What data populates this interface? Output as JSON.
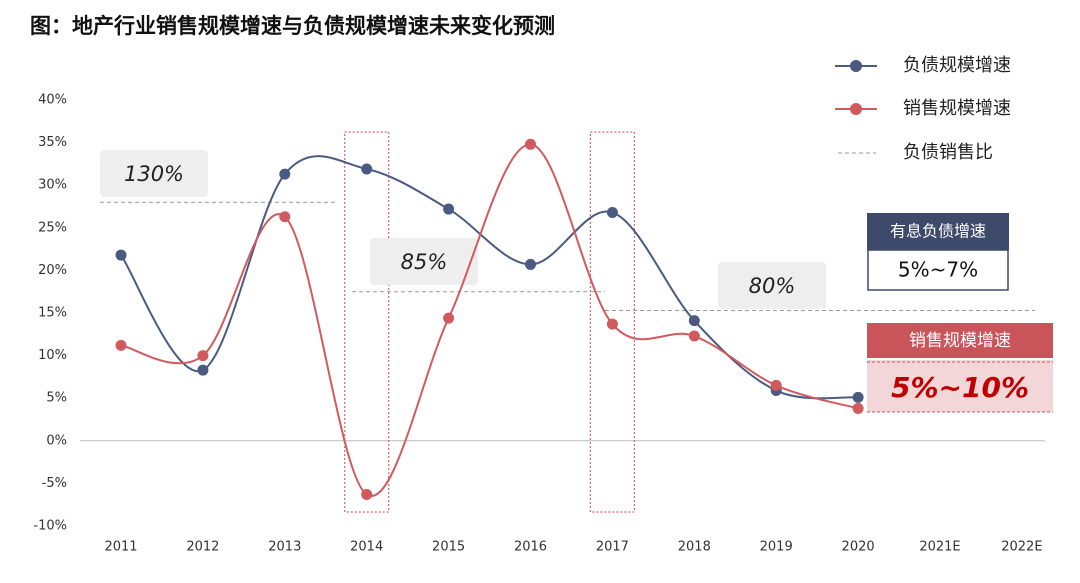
{
  "chart_data": {
    "type": "line",
    "title": "图：地产行业销售规模增速与负债规模增速未来变化预测",
    "categories": [
      "2011",
      "2012",
      "2013",
      "2014",
      "2015",
      "2016",
      "2017",
      "2018",
      "2019",
      "2020",
      "2021E",
      "2022E"
    ],
    "series": [
      {
        "name": "负债规模增速",
        "color": "#4a5a80",
        "values": [
          21.8,
          8.3,
          31.3,
          31.9,
          27.2,
          20.7,
          26.8,
          14.1,
          5.9,
          5.1,
          null,
          null
        ]
      },
      {
        "name": "销售规模增速",
        "color": "#d05a5e",
        "values": [
          11.2,
          10.0,
          26.3,
          -6.3,
          14.4,
          34.8,
          13.7,
          12.3,
          6.5,
          3.8,
          null,
          null
        ]
      }
    ],
    "ratio": {
      "name": "负债销售比",
      "segments": [
        {
          "label": "130%",
          "level": 28
        },
        {
          "label": "85%",
          "level": 17.5
        },
        {
          "label": "80%",
          "level": 15.3
        }
      ]
    },
    "highlight_categories": [
      "2014",
      "2017"
    ],
    "forecasts": [
      {
        "title": "有息负债增速",
        "text": "5%~7%"
      },
      {
        "title": "销售规模增速",
        "text": "5%~10%"
      }
    ],
    "ylim": [
      -10,
      40
    ],
    "yticks": [
      {
        "value": -10,
        "label": "-10%"
      },
      {
        "value": -5,
        "label": "-5%"
      },
      {
        "value": 0,
        "label": "0%"
      },
      {
        "value": 5,
        "label": "5%"
      },
      {
        "value": 10,
        "label": "10%"
      },
      {
        "value": 15,
        "label": "15%"
      },
      {
        "value": 20,
        "label": "20%"
      },
      {
        "value": 25,
        "label": "25%"
      },
      {
        "value": 30,
        "label": "30%"
      },
      {
        "value": 35,
        "label": "35%"
      },
      {
        "value": 40,
        "label": "40%"
      }
    ]
  }
}
